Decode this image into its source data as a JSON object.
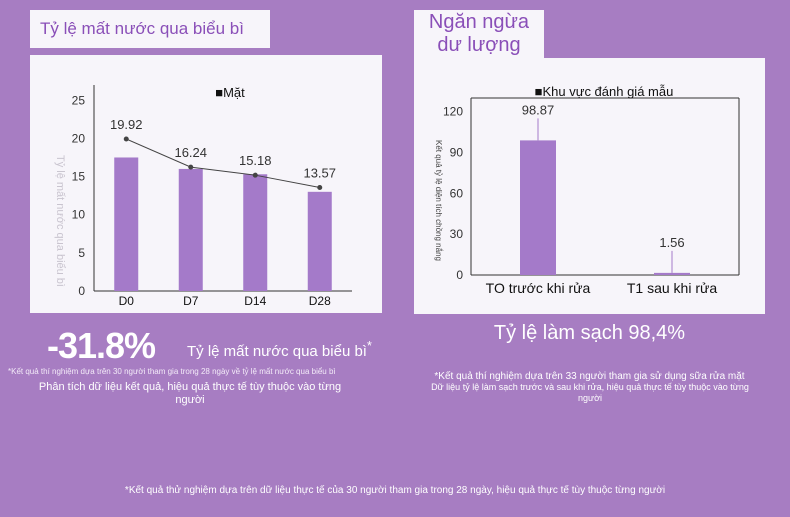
{
  "left": {
    "title": "Tỷ lệ mất nước qua biểu bì",
    "stat_value": "-31.8%",
    "stat_label": "Tỷ lệ mất nước qua biểu bì",
    "stat_asterisk": "*",
    "footnote": "*Kết quả thí nghiệm dựa trên 30 người tham gia trong 28 ngày về tỷ lệ mất nước qua biểu bì",
    "note_line1": "Phân tích dữ liệu kết quả, hiệu quả thực tế tùy thuộc vào từng",
    "note_line2": "người"
  },
  "right": {
    "title_line1": "Ngăn ngừa",
    "title_line2": "dư lượng",
    "clean_title": "Tỷ lệ làm sạch 98,4%",
    "footnote": "*Kết quả thí nghiệm dựa trên 33 người tham gia sử dụng sữa rửa mặt",
    "note_line1": "Dữ liệu tỷ lệ làm sạch trước và sau khi rửa, hiệu quả thực tế tùy thuộc vào từng",
    "note_line2": "người"
  },
  "footer": "*Kết quả thử nghiệm dựa trên dữ liệu thực tế của 30 người tham gia trong 28 ngày, hiệu quả thực tế tùy thuộc từng người",
  "colors": {
    "bar": "#a47ac9",
    "background": "#a77dc2",
    "panel": "#f7f5fa",
    "accent_text": "#8a4fb8"
  },
  "chart_data": [
    {
      "type": "bar",
      "legend": "■Mặt",
      "legend_placement": "top",
      "ylabel": "Tỷ lệ mất nước qua biểu bì",
      "categories": [
        "D0",
        "D7",
        "D14",
        "D28"
      ],
      "yticks": [
        0,
        5,
        10,
        15,
        20,
        25
      ],
      "ylim": [
        0,
        27
      ],
      "series": [
        {
          "name": "Mặt",
          "values": [
            17.5,
            16.0,
            15.3,
            13.0
          ]
        }
      ],
      "line_values": [
        19.92,
        16.24,
        15.18,
        13.57
      ],
      "data_labels": [
        "19.92",
        "16.24",
        "15.18",
        "13.57"
      ],
      "grid": false
    },
    {
      "type": "bar",
      "legend": "■Khu vực đánh giá mẫu",
      "legend_placement": "top",
      "ylabel": "Kết quả tỷ lệ diện tích chồng nắng",
      "categories": [
        "TO trước khi rửa",
        "T1 sau khi rửa"
      ],
      "yticks": [
        0,
        30,
        60,
        90,
        120
      ],
      "ylim": [
        0,
        130
      ],
      "series": [
        {
          "name": "Khu vực đánh giá mẫu",
          "values": [
            98.87,
            1.56
          ]
        }
      ],
      "data_labels": [
        "98.87",
        "1.56"
      ],
      "grid": false
    }
  ]
}
